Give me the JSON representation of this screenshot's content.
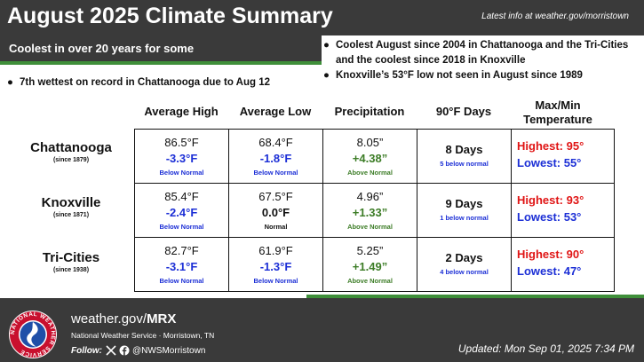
{
  "header": {
    "title": "August 2025 Climate Summary",
    "latest_info": "Latest info at weather.gov/morristown",
    "subtitle": "Coolest in over 20 years for some"
  },
  "bullets": [
    "Coolest August since 2004 in Chattanooga and the Tri-Cities and the coolest since 2018 in Knoxville",
    "Knoxville’s 53°F low not seen in August since 1989",
    "7th wettest on record in Chattanooga due to Aug 12"
  ],
  "bullet_symbol": "●",
  "columns": [
    "Average High",
    "Average  Low",
    "Precipitation",
    "90°F Days",
    "Max/Min Temperature"
  ],
  "rows": [
    {
      "city": "Chattanooga",
      "since": "(since 1879)",
      "avg_high": {
        "value": "86.5°F",
        "departure": "-3.3°F",
        "status": "Below Normal"
      },
      "avg_low": {
        "value": "68.4°F",
        "departure": "-1.8°F",
        "status": "Below Normal"
      },
      "precip": {
        "value": "8.05”",
        "departure": "+4.38”",
        "status": "Above Normal"
      },
      "days90": {
        "value": "8 Days",
        "note": "5 below normal"
      },
      "maxmin": {
        "highest": "Highest: 95°",
        "lowest": "Lowest: 55°"
      }
    },
    {
      "city": "Knoxville",
      "since": "(since 1871)",
      "avg_high": {
        "value": "85.4°F",
        "departure": "-2.4°F",
        "status": "Below Normal"
      },
      "avg_low": {
        "value": "67.5°F",
        "departure": "0.0°F",
        "status": "Normal"
      },
      "precip": {
        "value": "4.96”",
        "departure": "+1.33”",
        "status": "Above Normal"
      },
      "days90": {
        "value": "9 Days",
        "note": "1 below normal"
      },
      "maxmin": {
        "highest": "Highest: 93°",
        "lowest": "Lowest: 53°"
      }
    },
    {
      "city": "Tri-Cities",
      "since": "(since 1938)",
      "avg_high": {
        "value": "82.7°F",
        "departure": "-3.1°F",
        "status": "Below Normal"
      },
      "avg_low": {
        "value": "61.9°F",
        "departure": "-1.3°F",
        "status": "Below Normal"
      },
      "precip": {
        "value": "5.25”",
        "departure": "+1.49”",
        "status": "Above Normal"
      },
      "days90": {
        "value": "2 Days",
        "note": "4 below normal"
      },
      "maxmin": {
        "highest": "Highest: 90°",
        "lowest": "Lowest: 47°"
      }
    }
  ],
  "footer": {
    "site_prefix": "weather.gov/",
    "site_office": "MRX",
    "office_name": "National Weather Service · Morristown, TN",
    "follow_label": "Follow:",
    "social_handle": "@NWSMorristown",
    "updated": "Updated: Mon Sep 01, 2025 7:34 PM",
    "logo_text": "NATIONAL WEATHER SERVICE"
  },
  "colors": {
    "dark_bar": "#3a3a3a",
    "accent_green": "#3f8f3a",
    "below_blue": "#1c2fd6",
    "above_green": "#3d7d27",
    "highest_red": "#e01515"
  },
  "icons": [
    "x-icon",
    "facebook-icon",
    "nws-logo-icon"
  ]
}
